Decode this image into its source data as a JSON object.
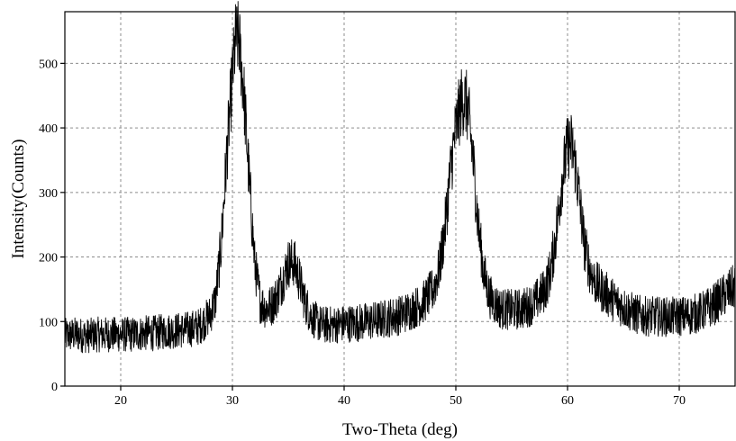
{
  "chart_data": {
    "type": "line",
    "title": "",
    "xlabel": "Two-Theta (deg)",
    "ylabel": "Intensity(Counts)",
    "xlim": [
      15,
      75
    ],
    "ylim": [
      0,
      580
    ],
    "xticks": [
      20,
      30,
      40,
      50,
      60,
      70
    ],
    "yticks": [
      0,
      100,
      200,
      300,
      400,
      500
    ],
    "grid": true,
    "legend": "none",
    "line_color": "#000000",
    "series": [
      {
        "x": [
          15,
          16,
          17,
          18,
          19,
          20,
          21,
          22,
          23,
          24,
          25,
          26,
          27,
          28,
          28.5,
          29,
          29.5,
          30,
          30.3,
          30.6,
          31,
          31.5,
          32,
          32.5,
          33,
          33.5,
          34,
          34.5,
          35,
          35.5,
          36,
          36.5,
          37,
          37.5,
          38,
          39,
          40,
          41,
          42,
          43,
          44,
          45,
          46,
          47,
          48,
          48.5,
          49,
          49.5,
          50,
          50.5,
          50.8,
          51.1,
          51.5,
          52,
          52.5,
          53,
          53.5,
          54,
          55,
          56,
          57,
          58,
          58.5,
          59,
          59.5,
          60,
          60.3,
          60.6,
          61,
          61.5,
          62,
          62.5,
          63,
          64,
          65,
          66,
          67,
          68,
          69,
          70,
          71,
          72,
          73,
          74,
          75
        ],
        "y": [
          78,
          80,
          78,
          80,
          80,
          80,
          80,
          82,
          82,
          85,
          86,
          88,
          92,
          110,
          135,
          220,
          360,
          480,
          540,
          535,
          460,
          320,
          190,
          130,
          120,
          125,
          140,
          165,
          190,
          192,
          165,
          130,
          110,
          100,
          95,
          95,
          97,
          98,
          100,
          102,
          106,
          110,
          118,
          128,
          150,
          180,
          240,
          330,
          400,
          440,
          445,
          425,
          360,
          250,
          175,
          140,
          128,
          120,
          118,
          120,
          128,
          150,
          180,
          240,
          320,
          370,
          375,
          355,
          300,
          220,
          180,
          160,
          150,
          135,
          122,
          112,
          108,
          108,
          107,
          108,
          110,
          115,
          125,
          140,
          155
        ]
      }
    ]
  }
}
